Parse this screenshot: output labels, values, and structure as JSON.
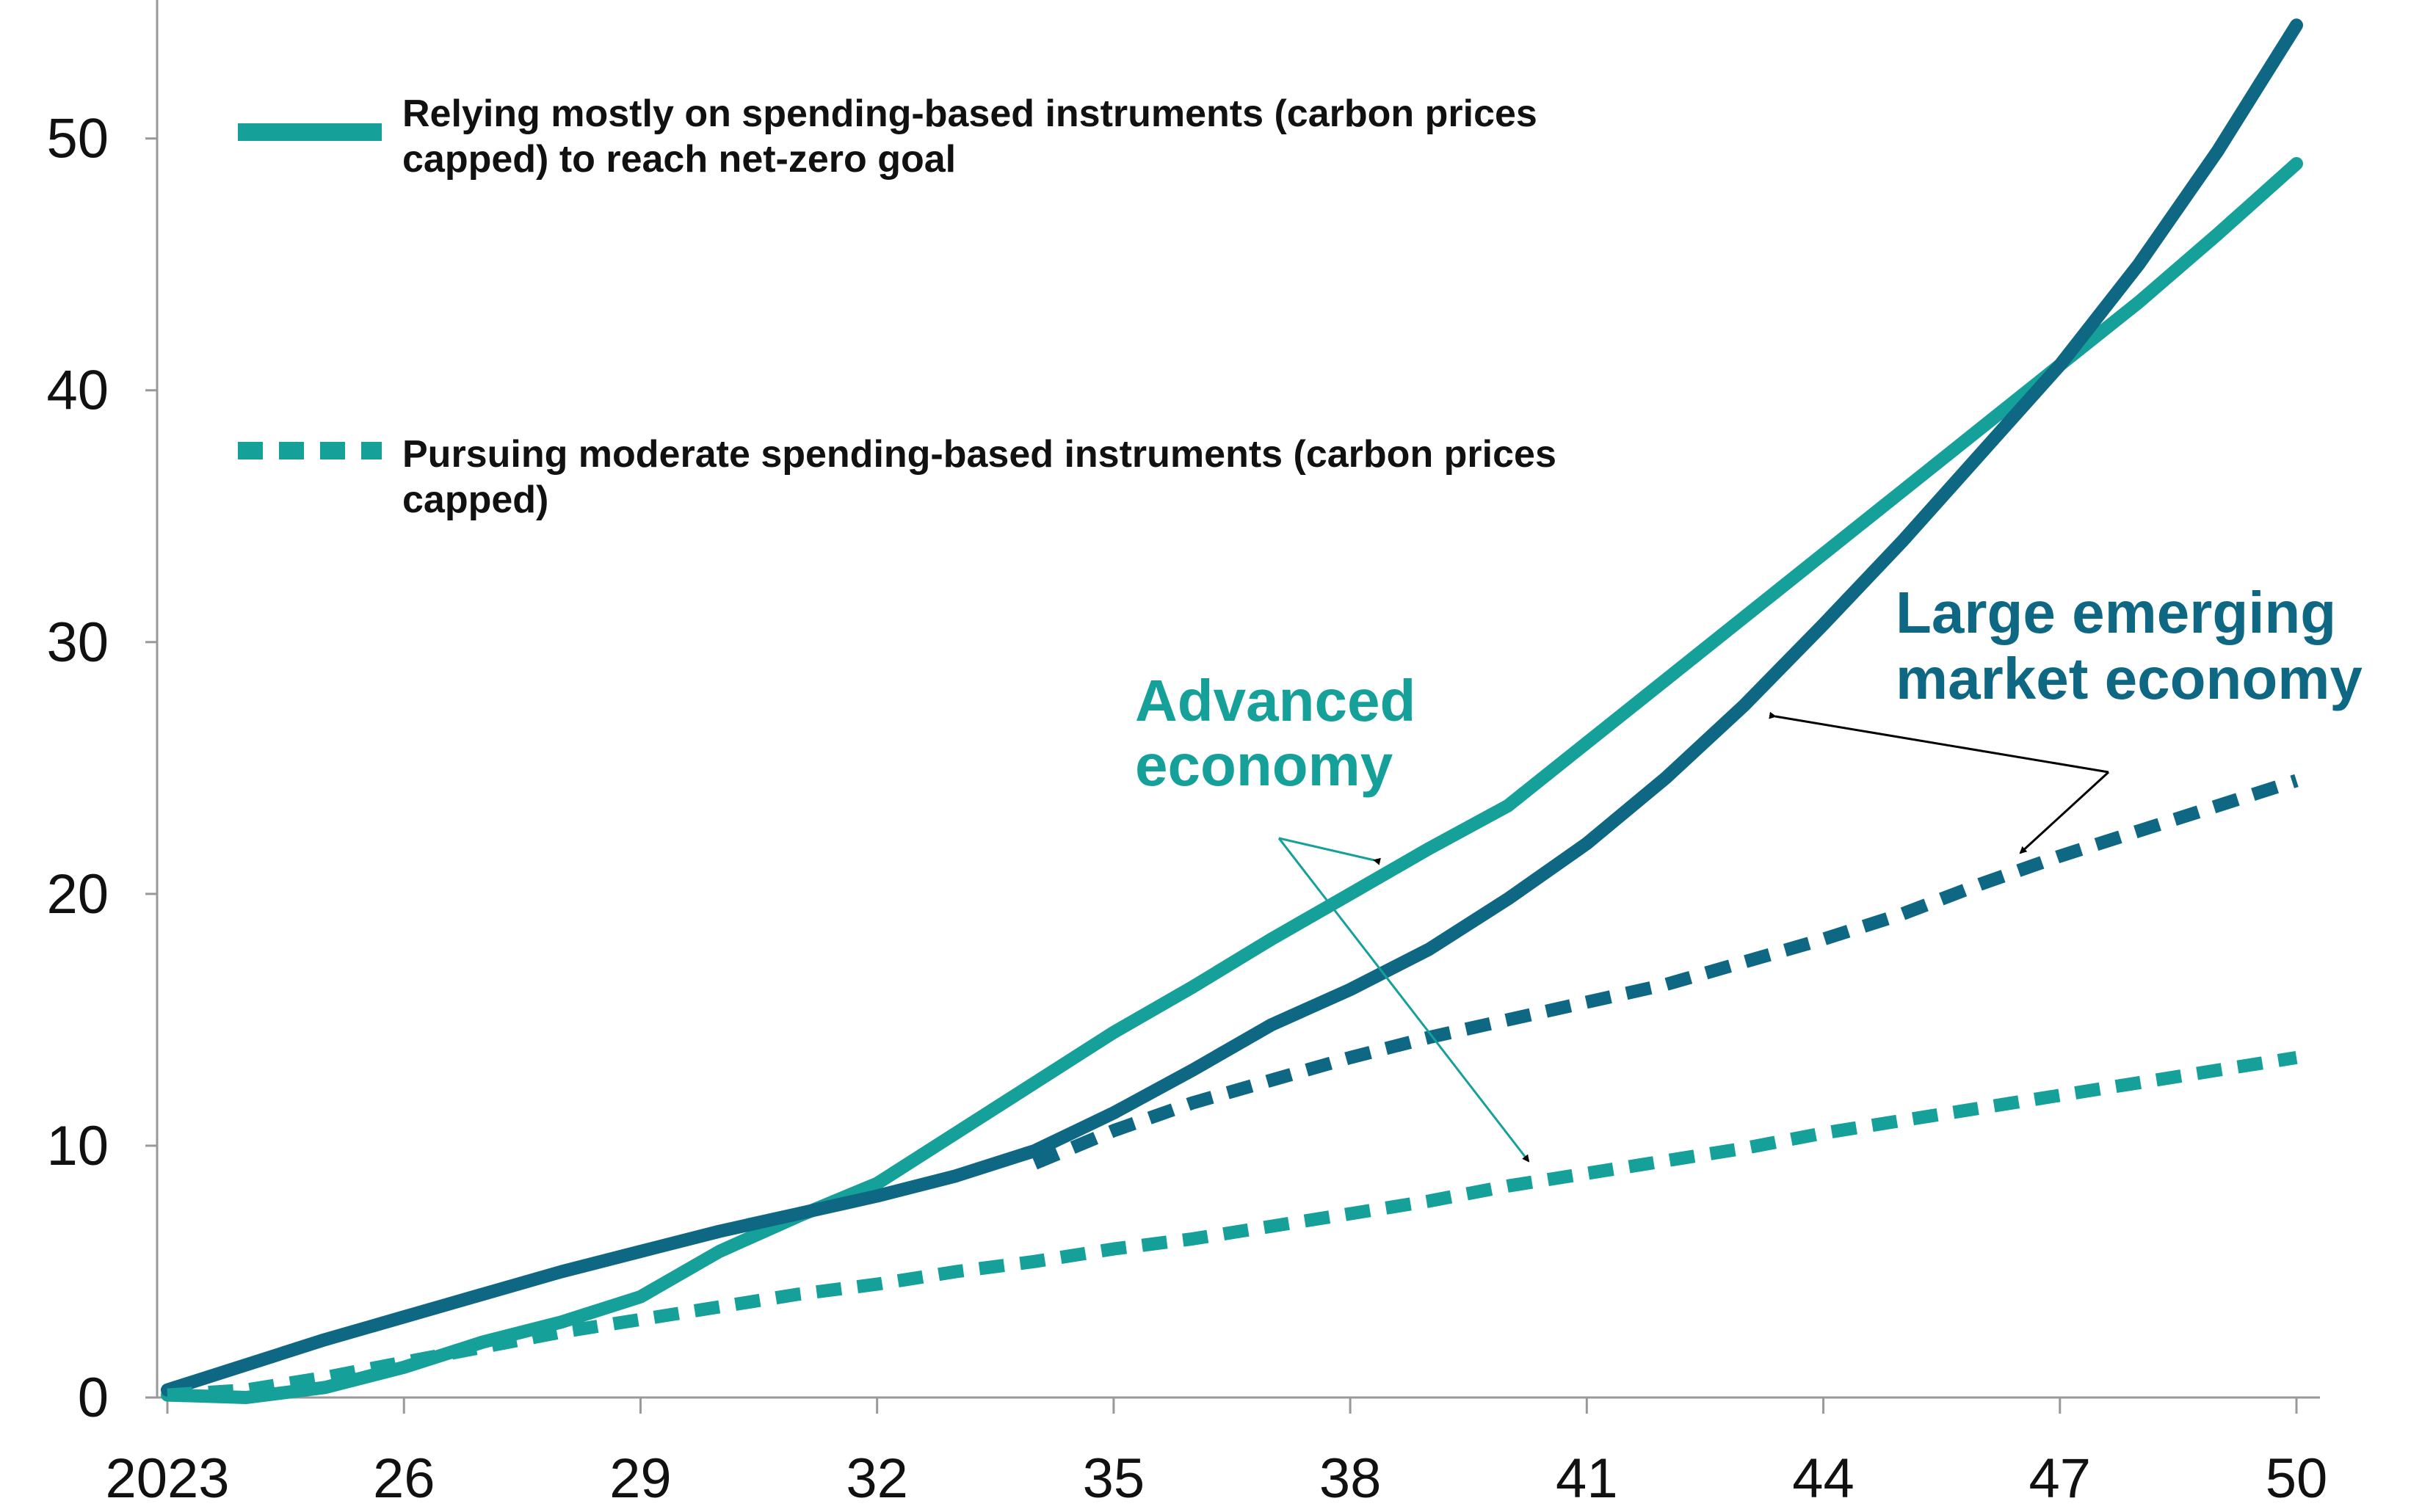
{
  "chart_data": {
    "type": "line",
    "title": "",
    "xlabel": "",
    "ylabel": "",
    "x_tick_labels": [
      "2023",
      "26",
      "29",
      "32",
      "35",
      "38",
      "41",
      "44",
      "47",
      "50"
    ],
    "x_tick_values": [
      2023,
      2026,
      2029,
      2032,
      2035,
      2038,
      2041,
      2044,
      2047,
      2050
    ],
    "y_tick_labels": [
      "0",
      "10",
      "20",
      "30",
      "40",
      "50"
    ],
    "y_tick_values": [
      0,
      10,
      20,
      30,
      40,
      50
    ],
    "xlim": [
      2023,
      2050
    ],
    "ylim": [
      0,
      55
    ],
    "grid": false,
    "legend": {
      "placement": "top-left",
      "entries": [
        {
          "style": "solid",
          "label_line1": "Relying mostly on spending-based instruments (carbon prices",
          "label_line2": "capped) to reach net-zero goal"
        },
        {
          "style": "dashed",
          "label_line1": "Pursuing moderate spending-based instruments (carbon prices",
          "label_line2": "capped)"
        }
      ]
    },
    "colors": {
      "advanced": "#16a09a",
      "emerging": "#0e6883",
      "axis": "#999999",
      "arrow": "#000000"
    },
    "series": [
      {
        "group": "advanced",
        "style": "solid",
        "x": [
          2023,
          2024,
          2025,
          2026,
          2027,
          2028,
          2029,
          2030,
          2031,
          2032,
          2033,
          2034,
          2035,
          2036,
          2037,
          2038,
          2039,
          2040,
          2041,
          2042,
          2043,
          2044,
          2045,
          2046,
          2047,
          2048,
          2049,
          2050
        ],
        "y": [
          0.1,
          0.0,
          0.4,
          1.2,
          2.2,
          3.0,
          4.0,
          5.8,
          7.2,
          8.5,
          10.5,
          12.5,
          14.5,
          16.3,
          18.2,
          20.0,
          21.8,
          23.5,
          26.0,
          28.5,
          31.0,
          33.5,
          36.0,
          38.5,
          41.0,
          43.5,
          46.2,
          49.0
        ]
      },
      {
        "group": "emerging",
        "style": "solid",
        "x": [
          2023,
          2024,
          2025,
          2026,
          2027,
          2028,
          2029,
          2030,
          2031,
          2032,
          2033,
          2034,
          2035,
          2036,
          2037,
          2038,
          2039,
          2040,
          2041,
          2042,
          2043,
          2044,
          2045,
          2046,
          2047,
          2048,
          2049,
          2050
        ],
        "y": [
          0.3,
          1.3,
          2.3,
          3.2,
          4.1,
          5.0,
          5.8,
          6.6,
          7.3,
          8.0,
          8.8,
          9.8,
          11.3,
          13.0,
          14.8,
          16.2,
          17.8,
          19.8,
          22.0,
          24.6,
          27.5,
          30.7,
          34.0,
          37.5,
          41.0,
          45.0,
          49.5,
          54.5
        ]
      },
      {
        "group": "advanced",
        "style": "dashed",
        "x": [
          2023,
          2024,
          2025,
          2026,
          2027,
          2028,
          2029,
          2030,
          2031,
          2032,
          2033,
          2034,
          2035,
          2036,
          2037,
          2038,
          2039,
          2040,
          2041,
          2042,
          2043,
          2044,
          2045,
          2046,
          2047,
          2048,
          2049,
          2050
        ],
        "y": [
          0.1,
          0.3,
          0.8,
          1.4,
          2.0,
          2.6,
          3.1,
          3.6,
          4.1,
          4.5,
          5.0,
          5.4,
          5.9,
          6.3,
          6.8,
          7.3,
          7.8,
          8.4,
          8.9,
          9.4,
          9.9,
          10.5,
          11.0,
          11.5,
          12.0,
          12.5,
          13.0,
          13.5
        ]
      },
      {
        "group": "emerging",
        "style": "dashed",
        "x": [
          2034,
          2035,
          2036,
          2037,
          2038,
          2039,
          2040,
          2041,
          2042,
          2043,
          2044,
          2045,
          2046,
          2047,
          2048,
          2049,
          2050
        ],
        "y": [
          9.3,
          10.6,
          11.7,
          12.6,
          13.5,
          14.3,
          15.0,
          15.7,
          16.4,
          17.3,
          18.2,
          19.2,
          20.4,
          21.5,
          22.5,
          23.5,
          24.5
        ]
      }
    ],
    "annotations": [
      {
        "group": "advanced",
        "line1": "Advanced",
        "line2": "economy"
      },
      {
        "group": "emerging",
        "line1": "Large emerging",
        "line2": "market economy"
      }
    ]
  }
}
